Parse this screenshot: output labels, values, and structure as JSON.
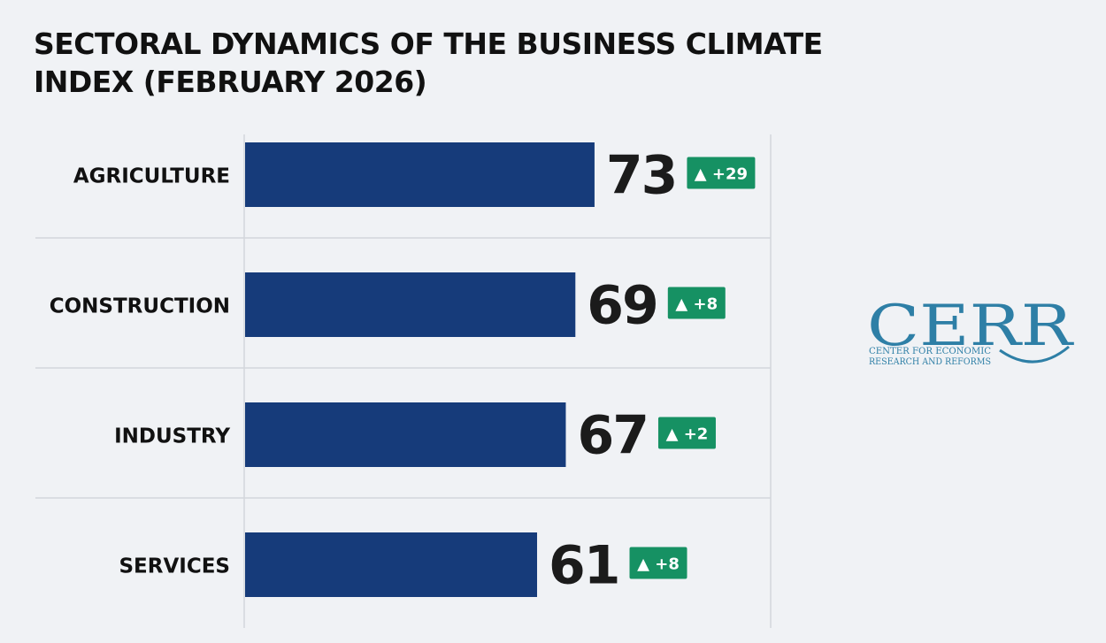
{
  "title": "SECTORAL DYNAMICS OF THE BUSINESS CLIMATE INDEX (FEBRUARY 2026)",
  "colors": {
    "bar": "#163b7a",
    "badge": "#169163",
    "gridline": "#d3d6db",
    "logo": "#2e7fa6"
  },
  "chart_data": {
    "type": "bar",
    "orientation": "horizontal",
    "title": "SECTORAL DYNAMICS OF THE BUSINESS CLIMATE INDEX (FEBRUARY 2026)",
    "xlabel": "",
    "ylabel": "",
    "xlim": [
      0,
      100
    ],
    "grid": true,
    "categories": [
      "AGRICULTURE",
      "CONSTRUCTION",
      "INDUSTRY",
      "SERVICES"
    ],
    "values": [
      73,
      69,
      67,
      61
    ],
    "value_labels": [
      "73",
      "69",
      "67",
      "61"
    ],
    "changes": [
      29,
      8,
      2,
      8
    ],
    "change_labels": [
      "▲ +29",
      "▲ +8",
      "▲ +2",
      "▲ +8"
    ]
  },
  "logo": {
    "name": "CERR",
    "subtitle_line1": "CENTER FOR ECONOMIC",
    "subtitle_line2": "RESEARCH AND REFORMS"
  }
}
